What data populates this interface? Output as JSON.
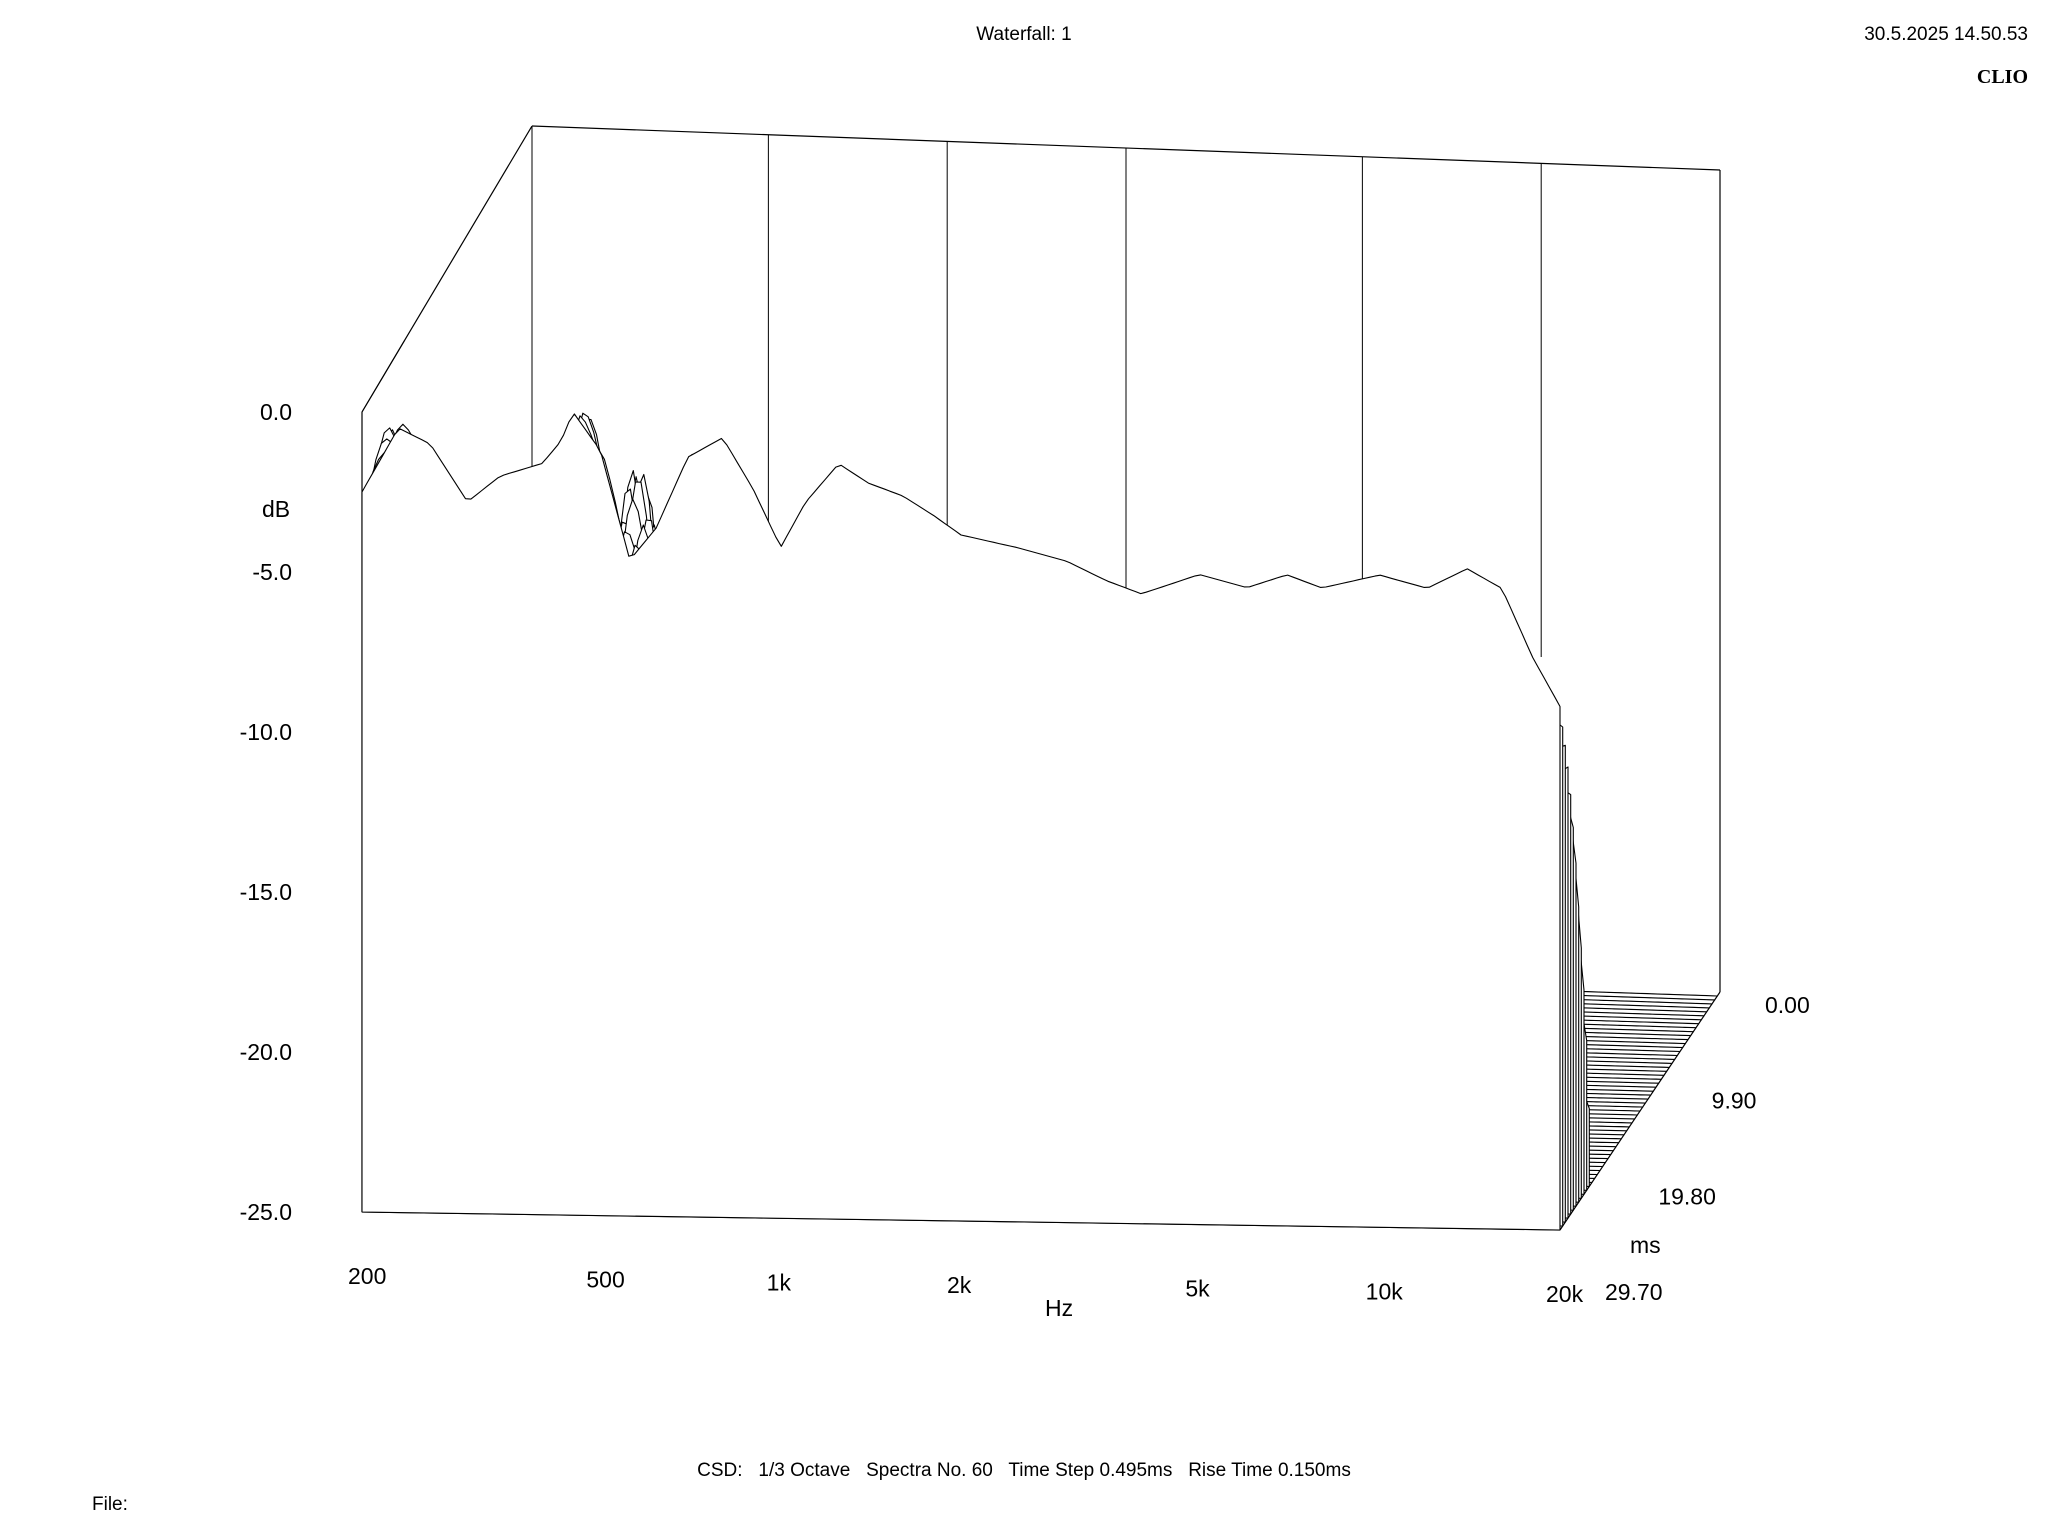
{
  "header": {
    "title": "Waterfall: 1",
    "timestamp": "30.5.2025 14.50.53",
    "brand": "CLIO"
  },
  "footer": {
    "info": "CSD:   1/3 Octave   Spectra No. 60   Time Step 0.495ms   Rise Time 0.150ms",
    "file_label": "File:"
  },
  "chart_data": {
    "type": "waterfall",
    "y_unit_label": "dB",
    "x_unit_label": "Hz",
    "z_unit_label": "ms",
    "x_scale": "log",
    "xlim": [
      200,
      20000
    ],
    "ylim": [
      -25,
      0
    ],
    "zlim": [
      0,
      29.7
    ],
    "y_ticks": [
      {
        "value": 0,
        "label": "0.0"
      },
      {
        "value": -5,
        "label": "-5.0"
      },
      {
        "value": -10,
        "label": "-10.0"
      },
      {
        "value": -15,
        "label": "-15.0"
      },
      {
        "value": -20,
        "label": "-20.0"
      },
      {
        "value": -25,
        "label": "-25.0"
      }
    ],
    "x_ticks": [
      {
        "value": 200,
        "label": "200"
      },
      {
        "value": 500,
        "label": "500"
      },
      {
        "value": 1000,
        "label": "1k"
      },
      {
        "value": 2000,
        "label": "2k"
      },
      {
        "value": 5000,
        "label": "5k"
      },
      {
        "value": 10000,
        "label": "10k"
      },
      {
        "value": 20000,
        "label": "20k"
      }
    ],
    "z_ticks": [
      {
        "value": 0,
        "label": "0.00"
      },
      {
        "value": 9.9,
        "label": "9.90"
      },
      {
        "value": 19.8,
        "label": "19.80"
      },
      {
        "value": 29.7,
        "label": "29.70"
      }
    ],
    "spectra_count": 60,
    "time_step_ms": 0.495,
    "first_spectrum_db": [
      {
        "f": 200,
        "db": -2.5
      },
      {
        "f": 230,
        "db": -0.5
      },
      {
        "f": 260,
        "db": -1.0
      },
      {
        "f": 300,
        "db": -2.8
      },
      {
        "f": 340,
        "db": -2.0
      },
      {
        "f": 400,
        "db": -1.6
      },
      {
        "f": 430,
        "db": -0.9
      },
      {
        "f": 450,
        "db": 0.0
      },
      {
        "f": 500,
        "db": -1.2
      },
      {
        "f": 560,
        "db": -4.6
      },
      {
        "f": 620,
        "db": -3.6
      },
      {
        "f": 700,
        "db": -1.4
      },
      {
        "f": 800,
        "db": -0.8
      },
      {
        "f": 900,
        "db": -2.4
      },
      {
        "f": 1000,
        "db": -4.2
      },
      {
        "f": 1100,
        "db": -2.8
      },
      {
        "f": 1250,
        "db": -1.6
      },
      {
        "f": 1400,
        "db": -2.2
      },
      {
        "f": 1600,
        "db": -2.6
      },
      {
        "f": 1800,
        "db": -3.2
      },
      {
        "f": 2000,
        "db": -3.8
      },
      {
        "f": 2500,
        "db": -4.2
      },
      {
        "f": 3000,
        "db": -4.6
      },
      {
        "f": 3500,
        "db": -5.2
      },
      {
        "f": 4000,
        "db": -5.6
      },
      {
        "f": 5000,
        "db": -5.0
      },
      {
        "f": 6000,
        "db": -5.4
      },
      {
        "f": 7000,
        "db": -5.0
      },
      {
        "f": 8000,
        "db": -5.4
      },
      {
        "f": 10000,
        "db": -5.0
      },
      {
        "f": 12000,
        "db": -5.4
      },
      {
        "f": 14000,
        "db": -4.8
      },
      {
        "f": 16000,
        "db": -5.4
      },
      {
        "f": 18000,
        "db": -7.5
      },
      {
        "f": 20000,
        "db": -9.0
      }
    ]
  }
}
